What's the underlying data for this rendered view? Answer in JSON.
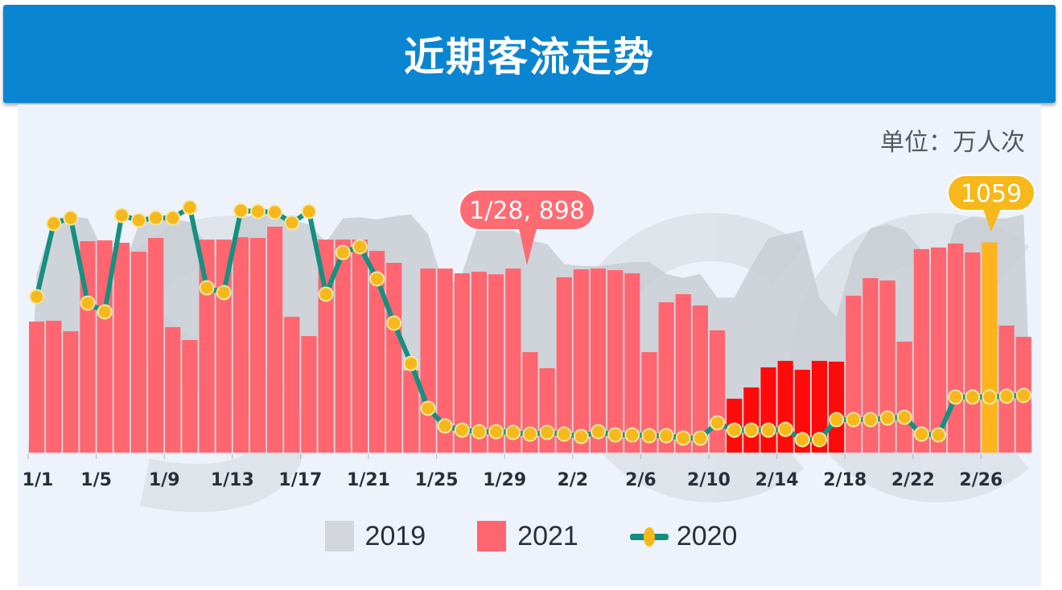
{
  "header": {
    "title": "近期客流走势"
  },
  "unit_label": "单位：万人次",
  "legend": [
    {
      "label": "2019",
      "color": "#d3d6db",
      "type": "area"
    },
    {
      "label": "2021",
      "color": "#ff6670",
      "type": "bar"
    },
    {
      "label": "2020",
      "color": "#159080",
      "marker_color": "#f6b81b",
      "type": "line"
    }
  ],
  "callouts": {
    "highlight_1": {
      "text": "1/28, 898",
      "color": "#ff6b73"
    },
    "highlight_2": {
      "text": "1059",
      "color": "#f6b81b"
    }
  },
  "colors": {
    "bar_2021": "#ff6670",
    "bar_2021_highlight_range": "#ff0a0a",
    "bar_2021_selected": "#ffb41e",
    "area_2019": "#c9cdd3",
    "line_2020": "#159080",
    "marker_2020": "#f6b81b",
    "header_bg": "#0a85d1",
    "panel_bg": "#eef3fb"
  },
  "chart_data": {
    "type": "bar",
    "title": "近期客流走势",
    "unit": "万人次",
    "xlabel": "",
    "ylabel": "万人次",
    "ylim": [
      0,
      1300
    ],
    "grid": false,
    "legend_position": "bottom",
    "tick_labels": [
      "1/1",
      "1/5",
      "1/9",
      "1/13",
      "1/17",
      "1/21",
      "1/25",
      "1/29",
      "2/2",
      "2/6",
      "2/10",
      "2/14",
      "2/18",
      "2/22",
      "2/26"
    ],
    "categories": [
      "1/1",
      "1/2",
      "1/3",
      "1/4",
      "1/5",
      "1/6",
      "1/7",
      "1/8",
      "1/9",
      "1/10",
      "1/11",
      "1/12",
      "1/13",
      "1/14",
      "1/15",
      "1/16",
      "1/17",
      "1/18",
      "1/19",
      "1/20",
      "1/21",
      "1/22",
      "1/23",
      "1/24",
      "1/25",
      "1/26",
      "1/27",
      "1/28",
      "1/29",
      "1/30",
      "1/31",
      "2/1",
      "2/2",
      "2/3",
      "2/4",
      "2/5",
      "2/6",
      "2/7",
      "2/8",
      "2/9",
      "2/10",
      "2/11",
      "2/12",
      "2/13",
      "2/14",
      "2/15",
      "2/16",
      "2/17",
      "2/18",
      "2/19",
      "2/20",
      "2/21",
      "2/22",
      "2/23",
      "2/24",
      "2/25",
      "2/26",
      "2/27",
      "2/28"
    ],
    "series": [
      {
        "name": "2021",
        "type": "bar",
        "values": [
          660,
          664,
          611,
          1065,
          1069,
          1057,
          1012,
          1081,
          632,
          567,
          1073,
          1073,
          1085,
          1081,
          1138,
          684,
          587,
          1073,
          1073,
          1073,
          1016,
          956,
          413,
          927,
          927,
          903,
          911,
          898,
          927,
          506,
          425,
          883,
          923,
          927,
          919,
          903,
          506,
          757,
          798,
          741,
          616,
          271,
          328,
          429,
          462,
          417,
          462,
          458,
          790,
          879,
          867,
          559,
          1025,
          1033,
          1053,
          1008,
          1059,
          640,
          583
        ]
      },
      {
        "name": "2020",
        "type": "line",
        "values": [
          785,
          1154,
          1182,
          753,
          709,
          1195,
          1170,
          1182,
          1182,
          1235,
          830,
          806,
          1219,
          1215,
          1211,
          1158,
          1215,
          798,
          1008,
          1037,
          875,
          652,
          449,
          223,
          134,
          113,
          105,
          105,
          101,
          93,
          101,
          93,
          81,
          105,
          89,
          89,
          85,
          85,
          73,
          73,
          150,
          113,
          113,
          113,
          117,
          65,
          65,
          166,
          166,
          166,
          174,
          178,
          93,
          89,
          280,
          280,
          280,
          284,
          288
        ]
      },
      {
        "name": "2019",
        "type": "area",
        "values": [
          900,
          1180,
          1190,
          1180,
          1000,
          900,
          1150,
          1170,
          1180,
          1160,
          1050,
          930,
          1180,
          1200,
          1190,
          1170,
          1150,
          1060,
          1180,
          1185,
          1175,
          1190,
          1200,
          1100,
          820,
          900,
          1160,
          1180,
          1120,
          1070,
          1050,
          950,
          940,
          940,
          950,
          960,
          960,
          900,
          880,
          900,
          780,
          780,
          940,
          1080,
          1100,
          1120,
          780,
          680,
          990,
          1130,
          1150,
          1120,
          1020,
          880,
          1150,
          1190,
          1180,
          1180,
          1200
        ]
      }
    ],
    "annotations": [
      {
        "category": "1/28",
        "series": "2021",
        "text": "1/28, 898"
      },
      {
        "category": "2/26",
        "series": "2021",
        "text": "1059"
      }
    ],
    "highlighted_range": {
      "from": "2/11",
      "to": "2/17",
      "color": "#ff0a0a"
    },
    "selected_bar": {
      "category": "2/26",
      "color": "#ffb41e"
    }
  }
}
